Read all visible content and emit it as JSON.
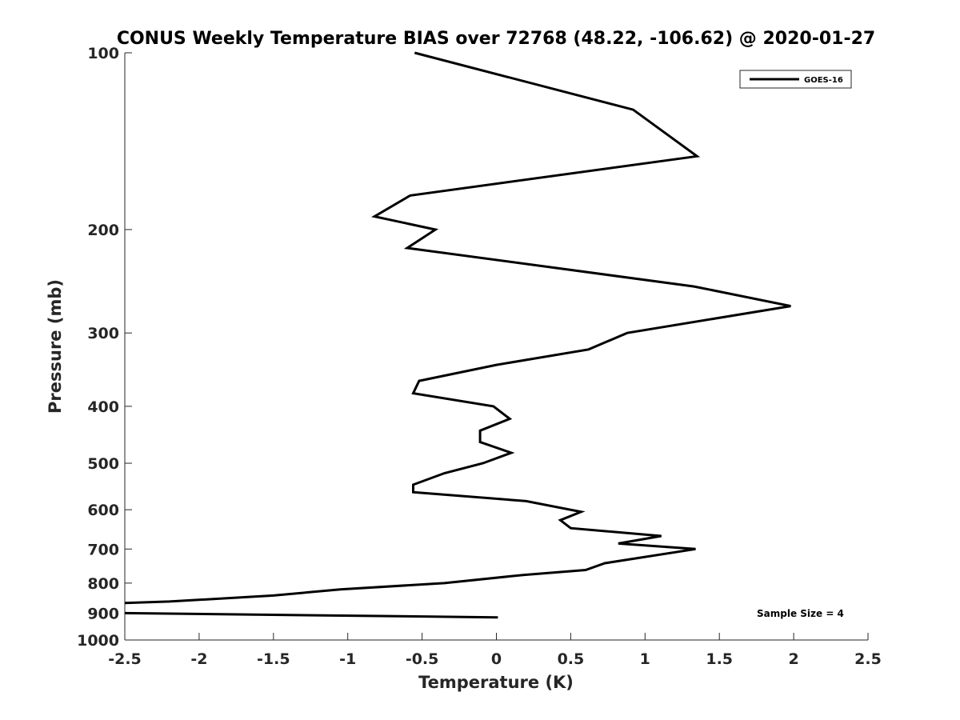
{
  "chart_data": {
    "type": "line",
    "title": "CONUS Weekly Temperature BIAS over 72768 (48.22, -106.62) @ 2020-01-27",
    "xlabel": "Temperature (K)",
    "ylabel": "Pressure (mb)",
    "xlim": [
      -2.5,
      2.5
    ],
    "ylim": [
      100,
      1000
    ],
    "y_scale": "log",
    "y_reversed": true,
    "grid": false,
    "x_ticks": [
      -2.5,
      -2,
      -1.5,
      -1,
      -0.5,
      0,
      0.5,
      1,
      1.5,
      2,
      2.5
    ],
    "x_tick_labels": [
      "-2.5",
      "-2",
      "-1.5",
      "-1",
      "-0.5",
      "0",
      "0.5",
      "1",
      "1.5",
      "2",
      "2.5"
    ],
    "y_ticks": [
      100,
      200,
      300,
      400,
      500,
      600,
      700,
      800,
      900,
      1000
    ],
    "y_tick_labels": [
      "100",
      "200",
      "300",
      "400",
      "500",
      "600",
      "700",
      "800",
      "900",
      "1000"
    ],
    "legend_position": "top-right",
    "annotation": "Sample Size = 4",
    "series": [
      {
        "name": "GOES-16",
        "color": "#000000",
        "points": [
          {
            "x": -0.55,
            "y": 100
          },
          {
            "x": 0.92,
            "y": 125
          },
          {
            "x": 1.35,
            "y": 150
          },
          {
            "x": -0.58,
            "y": 175
          },
          {
            "x": -0.82,
            "y": 190
          },
          {
            "x": -0.41,
            "y": 200
          },
          {
            "x": -0.6,
            "y": 215
          },
          {
            "x": 1.33,
            "y": 250
          },
          {
            "x": 1.98,
            "y": 270
          },
          {
            "x": 0.88,
            "y": 300
          },
          {
            "x": 0.62,
            "y": 320
          },
          {
            "x": 0.0,
            "y": 340
          },
          {
            "x": -0.52,
            "y": 362
          },
          {
            "x": -0.56,
            "y": 380
          },
          {
            "x": -0.02,
            "y": 400
          },
          {
            "x": 0.09,
            "y": 420
          },
          {
            "x": -0.11,
            "y": 440
          },
          {
            "x": -0.11,
            "y": 460
          },
          {
            "x": 0.1,
            "y": 480
          },
          {
            "x": -0.09,
            "y": 500
          },
          {
            "x": -0.35,
            "y": 520
          },
          {
            "x": -0.56,
            "y": 544
          },
          {
            "x": -0.56,
            "y": 560
          },
          {
            "x": 0.2,
            "y": 580
          },
          {
            "x": 0.57,
            "y": 605
          },
          {
            "x": 0.43,
            "y": 625
          },
          {
            "x": 0.5,
            "y": 645
          },
          {
            "x": 1.11,
            "y": 665
          },
          {
            "x": 0.82,
            "y": 685
          },
          {
            "x": 1.34,
            "y": 700
          },
          {
            "x": 0.73,
            "y": 740
          },
          {
            "x": 0.6,
            "y": 760
          },
          {
            "x": 0.18,
            "y": 775
          },
          {
            "x": -0.35,
            "y": 800
          },
          {
            "x": -1.05,
            "y": 820
          },
          {
            "x": -1.5,
            "y": 840
          },
          {
            "x": -2.2,
            "y": 860
          },
          {
            "x": -2.5,
            "y": 865
          }
        ]
      },
      {
        "name": "",
        "color": "#000000",
        "points": [
          {
            "x": -2.5,
            "y": 900
          },
          {
            "x": 0.01,
            "y": 915
          }
        ]
      }
    ]
  }
}
